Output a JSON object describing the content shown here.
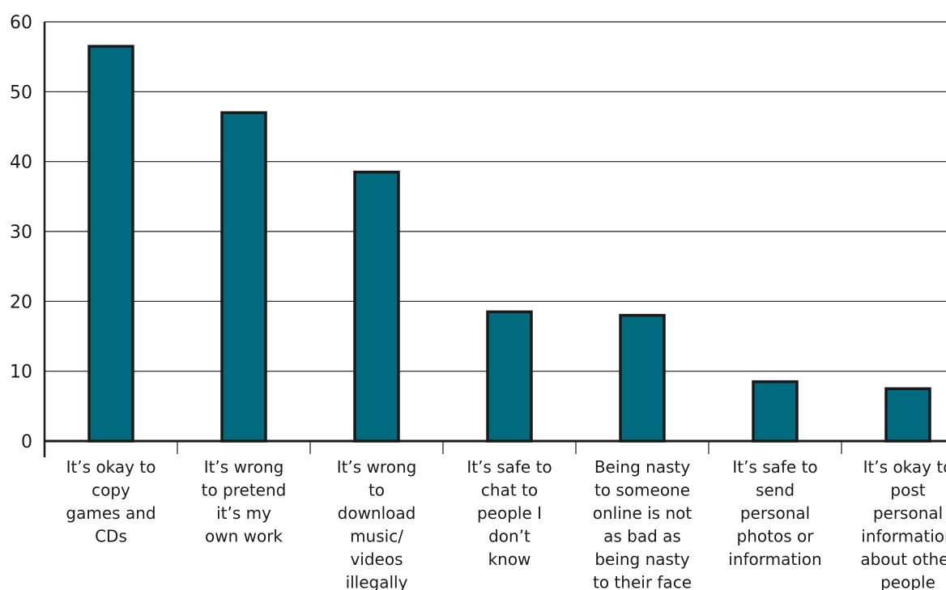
{
  "chart_data": {
    "type": "bar",
    "title": "",
    "xlabel": "",
    "ylabel": "",
    "ylim": [
      0,
      60
    ],
    "yticks": [
      0,
      10,
      20,
      30,
      40,
      50,
      60
    ],
    "grid": true,
    "categories": [
      [
        "It’s okay to",
        "copy",
        "games and",
        "CDs"
      ],
      [
        "It’s wrong",
        "to pretend",
        "it’s my",
        "own work"
      ],
      [
        "It’s wrong",
        "to",
        "download",
        "music/",
        "videos",
        "illegally"
      ],
      [
        "It’s safe to",
        "chat to",
        "people I",
        "don’t",
        "know"
      ],
      [
        "Being nasty",
        "to someone",
        "online is not",
        "as bad as",
        "being nasty",
        "to their face"
      ],
      [
        "It’s safe to",
        "send",
        "personal",
        "photos or",
        "information"
      ],
      [
        "It’s okay to",
        "post",
        "personal",
        "information",
        "about other",
        "people"
      ]
    ],
    "values": [
      56.5,
      47,
      38.5,
      18.5,
      18,
      8.5,
      7.5
    ],
    "colors": {
      "bar": "#006a7e",
      "bar_outline": "#1a1a1a",
      "grid": "#1a1a1a",
      "axis": "#1a1a1a"
    }
  }
}
